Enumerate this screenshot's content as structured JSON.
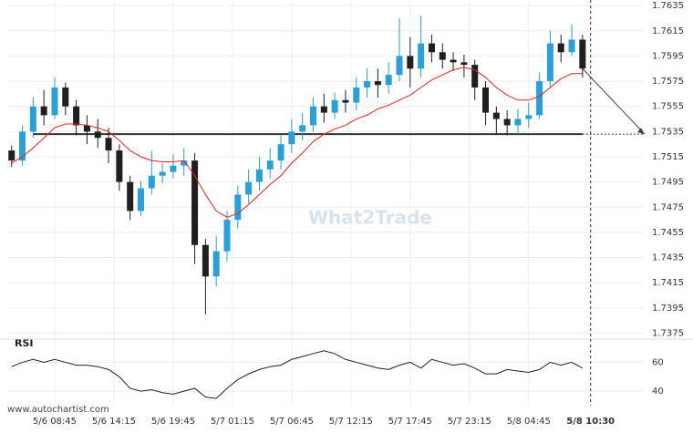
{
  "chart_data": {
    "type": "candlestick",
    "x": [
      -4,
      -3,
      -2,
      -1,
      0,
      1,
      2,
      3,
      4,
      5,
      6,
      7,
      8,
      9,
      10,
      11,
      12,
      13,
      14,
      15,
      16,
      17,
      18,
      19,
      20,
      21,
      22,
      23,
      24,
      25,
      26,
      27,
      28,
      29,
      30,
      31,
      32,
      33,
      34,
      35,
      36,
      37,
      38,
      39,
      40,
      41,
      42,
      43,
      44,
      45,
      46,
      47,
      48,
      49
    ],
    "open": [
      1.752,
      1.7512,
      1.7535,
      1.7555,
      1.7548,
      1.757,
      1.7555,
      1.754,
      1.7535,
      1.753,
      1.752,
      1.7495,
      1.7472,
      1.749,
      1.75,
      1.7503,
      1.7508,
      1.7512,
      1.7445,
      1.742,
      1.744,
      1.7465,
      1.7485,
      1.7495,
      1.7505,
      1.7512,
      1.7525,
      1.7535,
      1.754,
      1.7555,
      1.755,
      1.756,
      1.7558,
      1.757,
      1.7575,
      1.7572,
      1.758,
      1.7595,
      1.7585,
      1.7605,
      1.7598,
      1.7592,
      1.759,
      1.7588,
      1.757,
      1.755,
      1.7545,
      1.754,
      1.7545,
      1.7548,
      1.7575,
      1.7605,
      1.7598,
      1.7608
    ],
    "high": [
      1.7524,
      1.754,
      1.7562,
      1.7568,
      1.7578,
      1.7574,
      1.756,
      1.7548,
      1.7545,
      1.7538,
      1.7525,
      1.75,
      1.7496,
      1.752,
      1.751,
      1.7517,
      1.7522,
      1.7518,
      1.745,
      1.7452,
      1.7472,
      1.7492,
      1.7505,
      1.7515,
      1.7522,
      1.7532,
      1.7545,
      1.755,
      1.7562,
      1.7565,
      1.7566,
      1.7568,
      1.7578,
      1.7585,
      1.7585,
      1.759,
      1.7625,
      1.761,
      1.7627,
      1.7612,
      1.7605,
      1.7598,
      1.7596,
      1.7592,
      1.7575,
      1.7555,
      1.7552,
      1.7553,
      1.7558,
      1.7582,
      1.7615,
      1.7612,
      1.762,
      1.7612
    ],
    "low": [
      1.7507,
      1.7508,
      1.753,
      1.754,
      1.7545,
      1.7548,
      1.7532,
      1.7525,
      1.7522,
      1.751,
      1.7488,
      1.7465,
      1.7468,
      1.7485,
      1.7494,
      1.7498,
      1.75,
      1.743,
      1.739,
      1.7412,
      1.7432,
      1.7458,
      1.7478,
      1.7488,
      1.7498,
      1.7505,
      1.7518,
      1.7528,
      1.7535,
      1.7542,
      1.7545,
      1.755,
      1.7552,
      1.7562,
      1.7562,
      1.7565,
      1.7575,
      1.757,
      1.7578,
      1.759,
      1.7585,
      1.7583,
      1.7578,
      1.756,
      1.754,
      1.7533,
      1.7532,
      1.7533,
      1.7538,
      1.7545,
      1.757,
      1.759,
      1.7595,
      1.7578
    ],
    "close": [
      1.7512,
      1.7535,
      1.7555,
      1.7548,
      1.757,
      1.7555,
      1.754,
      1.7535,
      1.753,
      1.752,
      1.7495,
      1.7472,
      1.749,
      1.75,
      1.7503,
      1.7508,
      1.7512,
      1.7445,
      1.742,
      1.744,
      1.7465,
      1.7485,
      1.7495,
      1.7505,
      1.7512,
      1.7525,
      1.7535,
      1.754,
      1.7555,
      1.755,
      1.756,
      1.7558,
      1.757,
      1.7575,
      1.7572,
      1.758,
      1.7595,
      1.7585,
      1.7605,
      1.7598,
      1.7592,
      1.759,
      1.7588,
      1.757,
      1.755,
      1.7545,
      1.754,
      1.7545,
      1.7548,
      1.7575,
      1.7605,
      1.7598,
      1.7608,
      1.7585
    ],
    "moving_average": [
      1.751,
      1.7515,
      1.7522,
      1.753,
      1.7538,
      1.7541,
      1.7541,
      1.754,
      1.7538,
      1.7535,
      1.7528,
      1.752,
      1.7515,
      1.7512,
      1.7511,
      1.7511,
      1.7512,
      1.75,
      1.7485,
      1.7472,
      1.7467,
      1.747,
      1.7477,
      1.7485,
      1.7493,
      1.75,
      1.751,
      1.7518,
      1.7527,
      1.7533,
      1.7537,
      1.754,
      1.7545,
      1.7548,
      1.7553,
      1.7556,
      1.756,
      1.7564,
      1.757,
      1.7576,
      1.758,
      1.7584,
      1.7586,
      1.7584,
      1.7578,
      1.757,
      1.7564,
      1.756,
      1.756,
      1.7563,
      1.757,
      1.7577,
      1.7581,
      1.7581
    ],
    "rsi": [
      57,
      60,
      62,
      60,
      62,
      60,
      58,
      58,
      57,
      55,
      50,
      42,
      40,
      41,
      39,
      38,
      40,
      42,
      36,
      35,
      42,
      48,
      52,
      55,
      57,
      58,
      62,
      64,
      66,
      68,
      66,
      62,
      60,
      58,
      56,
      55,
      58,
      60,
      56,
      62,
      60,
      58,
      59,
      56,
      52,
      52,
      55,
      54,
      53,
      55,
      60,
      58,
      60,
      56
    ],
    "up_color": "#2a9fd8",
    "down_color": "#1f1f1f",
    "ma_color": "#e8231e",
    "level": 1.7533,
    "xlim": [
      -4.4,
      54.6
    ],
    "xticks": [
      {
        "value": 0,
        "label": "5/6 08:45"
      },
      {
        "value": 5.5,
        "label": "5/6 14:15"
      },
      {
        "value": 11,
        "label": "5/6 19:45"
      },
      {
        "value": 16.5,
        "label": "5/7 01:15"
      },
      {
        "value": 22,
        "label": "5/7 06:45"
      },
      {
        "value": 27.5,
        "label": "5/7 12:15"
      },
      {
        "value": 33,
        "label": "5/7 17:45"
      },
      {
        "value": 38.5,
        "label": "5/7 23:15"
      },
      {
        "value": 44,
        "label": "5/8 04:45"
      },
      {
        "value": 49.75,
        "label": "5/8 10:30"
      }
    ],
    "ylim": [
      1.7371,
      1.7638
    ],
    "yticks": [
      1.7375,
      1.7395,
      1.7415,
      1.7435,
      1.7455,
      1.7475,
      1.7495,
      1.7515,
      1.7535,
      1.7555,
      1.7575,
      1.7595,
      1.7615,
      1.7635
    ],
    "grid": true,
    "rsi_label": "RSI",
    "rsi_ylim": [
      30,
      71
    ],
    "rsi_yticks": [
      40,
      60
    ],
    "watermark": "What2Trade",
    "source": "www.autochartist.com"
  }
}
